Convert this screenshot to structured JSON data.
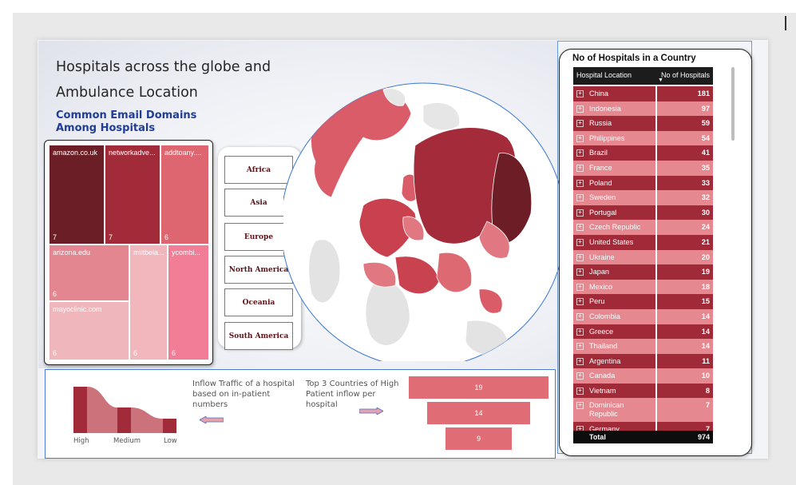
{
  "report": {
    "title_line1": "Hospitals across the globe and",
    "title_line2": "Ambulance Location",
    "subtitle": "Common Email Domains Among Hospitals"
  },
  "treemap": {
    "tiles": [
      {
        "name": "amazon.co.uk",
        "value": "7",
        "color": "#6b1e25"
      },
      {
        "name": "networkadve...",
        "value": "7",
        "color": "#a22b39"
      },
      {
        "name": "addtoany....",
        "value": "6",
        "color": "#dd6670"
      },
      {
        "name": "arizona.edu",
        "value": "6",
        "color": "#e3868f"
      },
      {
        "name": "miitbeia...",
        "value": "6",
        "color": "#f2b6bd"
      },
      {
        "name": "ycombi...",
        "value": "6",
        "color": "#f27d96"
      },
      {
        "name": "mayoclinic.com",
        "value": "6",
        "color": "#efb6bc"
      }
    ]
  },
  "slicer": {
    "items": [
      "Africa",
      "Asia",
      "Europe",
      "North America",
      "Oceania",
      "South America"
    ]
  },
  "bottom": {
    "inflow_text": "Inflow Traffic of a hospital based on in-patient numbers",
    "top3_text": "Top 3 Countries of High Patient inflow per hospital",
    "ribbon_labels": [
      "High",
      "Medium",
      "Low"
    ],
    "funnel_values": [
      "19",
      "14",
      "9"
    ]
  },
  "table": {
    "title": "No of Hospitals in a Country",
    "col1": "Hospital Location",
    "col2": "No of Hospitals",
    "rows": [
      {
        "country": "China",
        "count": "181"
      },
      {
        "country": "Indonesia",
        "count": "97"
      },
      {
        "country": "Russia",
        "count": "59"
      },
      {
        "country": "Philippines",
        "count": "54"
      },
      {
        "country": "Brazil",
        "count": "41"
      },
      {
        "country": "France",
        "count": "35"
      },
      {
        "country": "Poland",
        "count": "33"
      },
      {
        "country": "Sweden",
        "count": "32"
      },
      {
        "country": "Portugal",
        "count": "30"
      },
      {
        "country": "Czech Republic",
        "count": "24"
      },
      {
        "country": "United States",
        "count": "21"
      },
      {
        "country": "Ukraine",
        "count": "20"
      },
      {
        "country": "Japan",
        "count": "19"
      },
      {
        "country": "Mexico",
        "count": "18"
      },
      {
        "country": "Peru",
        "count": "15"
      },
      {
        "country": "Colombia",
        "count": "14"
      },
      {
        "country": "Greece",
        "count": "14"
      },
      {
        "country": "Thailand",
        "count": "14"
      },
      {
        "country": "Argentina",
        "count": "11"
      },
      {
        "country": "Canada",
        "count": "10"
      },
      {
        "country": "Vietnam",
        "count": "8"
      },
      {
        "country": "Dominican Republic",
        "count": "7"
      },
      {
        "country": "Germany",
        "count": "7"
      }
    ],
    "total_label": "Total",
    "total_value": "974",
    "dark_color": "#a02a38",
    "light_color": "#e58890"
  }
}
